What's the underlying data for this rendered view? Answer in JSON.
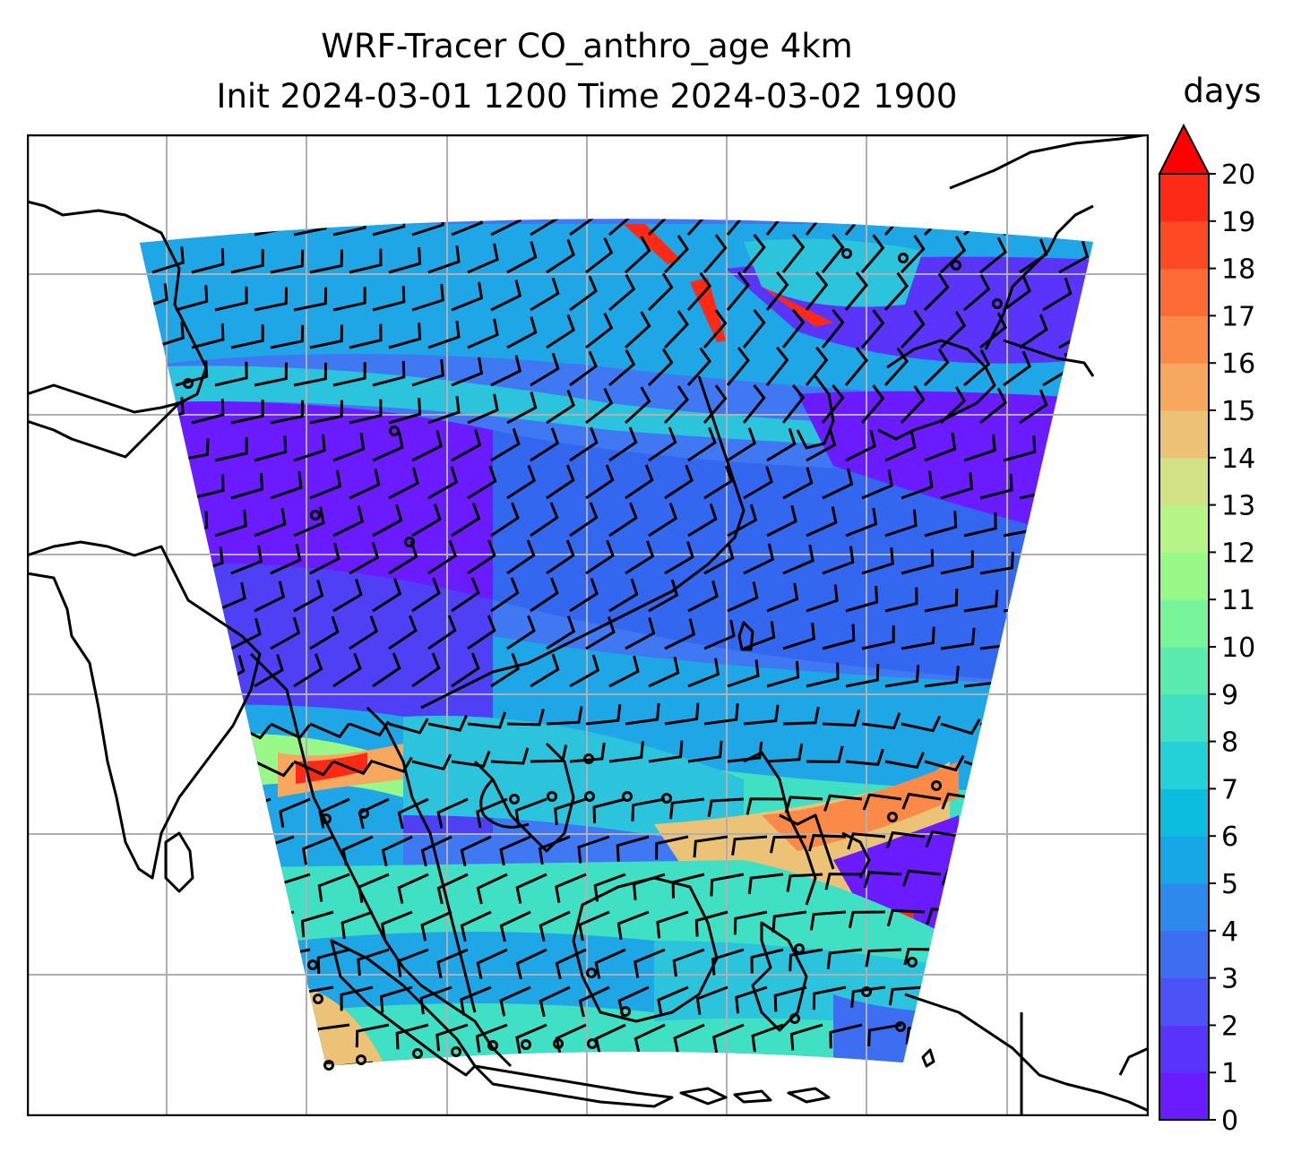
{
  "title": {
    "line1": "WRF-Tracer CO_anthro_age 4km",
    "line2": "Init 2024-03-01 1200 Time 2024-03-02 1900"
  },
  "colorbar": {
    "unit": "days",
    "min": 0,
    "max": 20,
    "extend": "max",
    "ticks": [
      "0",
      "1",
      "2",
      "3",
      "4",
      "5",
      "6",
      "7",
      "8",
      "9",
      "10",
      "11",
      "12",
      "13",
      "14",
      "15",
      "16",
      "17",
      "18",
      "19",
      "20"
    ],
    "colors": [
      "#6a1bff",
      "#5a34fb",
      "#4b52f6",
      "#3d6ef2",
      "#2d8aec",
      "#17a7e6",
      "#0cbde0",
      "#25d1d8",
      "#3fe0c4",
      "#5aecae",
      "#78f59a",
      "#98f988",
      "#b7f589",
      "#d2e186",
      "#ecc276",
      "#f8a75e",
      "#fb8a48",
      "#fd6a36",
      "#fe4a24",
      "#ff2a15"
    ],
    "extend_color": "#ff0000"
  },
  "map": {
    "field": "CO_anthro_age",
    "level": "4km",
    "gridlines": true,
    "overlays": [
      "coastlines",
      "wind-barbs",
      "age-shading"
    ]
  }
}
